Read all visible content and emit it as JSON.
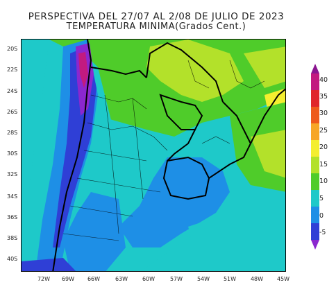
{
  "header": {
    "title_line1": "PERSPECTIVA DEL 27/07 AL 2/08 DE JULIO DE 2023",
    "title_line2": "TEMPERATURA MINIMA(Grados Cent.)"
  },
  "map": {
    "lat_labels": [
      "20S",
      "22S",
      "24S",
      "26S",
      "28S",
      "30S",
      "32S",
      "34S",
      "36S",
      "38S",
      "40S"
    ],
    "lon_labels": [
      "72W",
      "69W",
      "66W",
      "63W",
      "60W",
      "57W",
      "54W",
      "51W",
      "48W",
      "45W"
    ]
  },
  "legend": {
    "labels": [
      "40",
      "35",
      "30",
      "25",
      "20",
      "15",
      "10",
      "5",
      "0",
      "-5"
    ],
    "colors": [
      "#8a1590",
      "#c21a80",
      "#e0262b",
      "#ee5a1c",
      "#f7a626",
      "#f4ee2f",
      "#b3e12a",
      "#4fcc2a",
      "#1ec9c9",
      "#1e8fe6",
      "#2f3fd6",
      "#8b27cf"
    ]
  }
}
